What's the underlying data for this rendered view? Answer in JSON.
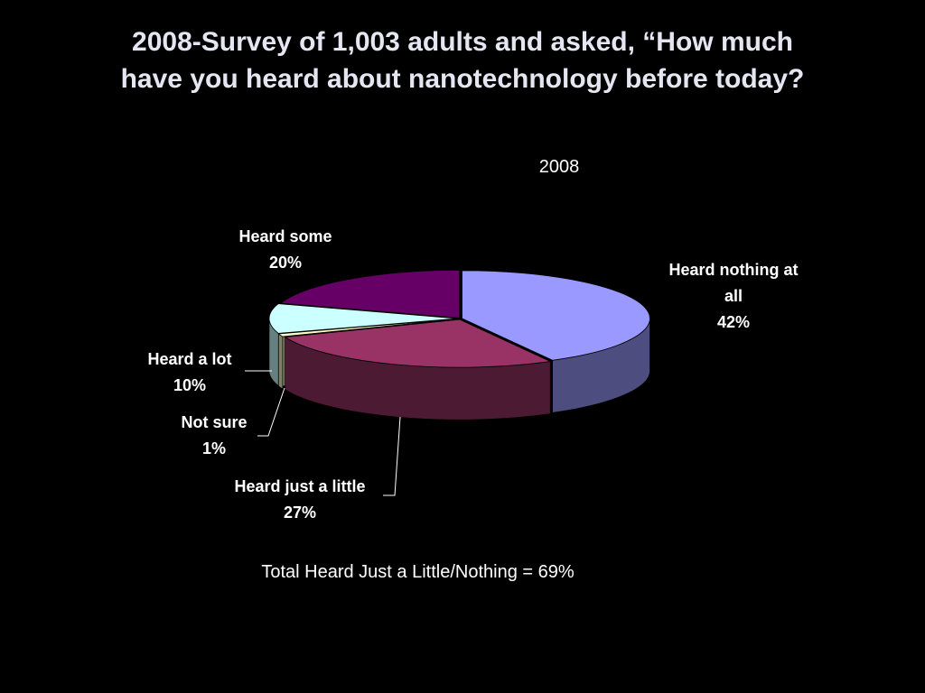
{
  "slide": {
    "title_line1": "2008-Survey of 1,003 adults and asked, “How much",
    "title_line2": "have you heard about nanotechnology before today?",
    "footer": "Total Heard Just a Little/Nothing = 69%"
  },
  "chart_data": {
    "type": "pie",
    "title": "2008",
    "style": "3d-exploded-disc",
    "start_angle_deg": -90,
    "direction": "clockwise",
    "slices": [
      {
        "label_lines": [
          "Heard nothing at",
          "all",
          "42%"
        ],
        "value": 42,
        "color": "#9999ff"
      },
      {
        "label_lines": [
          "Heard just a little",
          "27%"
        ],
        "value": 27,
        "color": "#993366"
      },
      {
        "label_lines": [
          "Not sure",
          "1%"
        ],
        "value": 1,
        "color": "#ffffcc"
      },
      {
        "label_lines": [
          "Heard a lot",
          "10%"
        ],
        "value": 10,
        "color": "#ccffff"
      },
      {
        "label_lines": [
          "Heard some",
          "20%"
        ],
        "value": 20,
        "color": "#660066"
      }
    ],
    "legend": "none",
    "data_labels": "outside-with-leaders"
  }
}
